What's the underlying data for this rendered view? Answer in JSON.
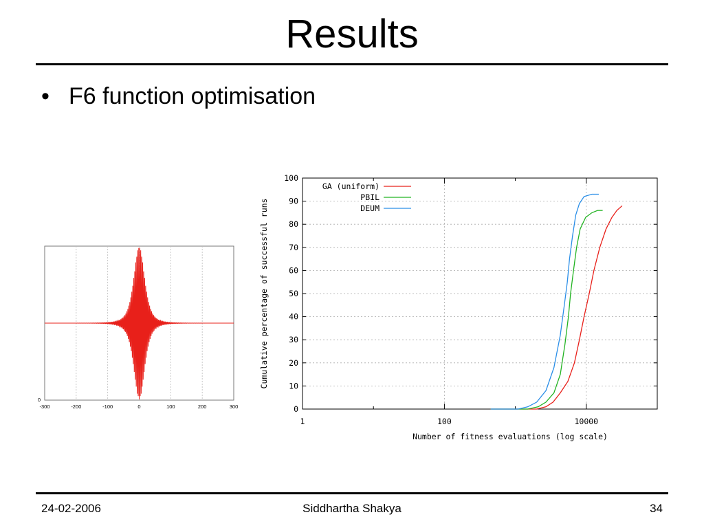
{
  "slide": {
    "title": "Results",
    "bullet": "F6 function optimisation"
  },
  "footer": {
    "date": "24-02-2006",
    "author": "Siddhartha Shakya",
    "page": "34"
  },
  "colors": {
    "ga": "#e8201a",
    "pbil": "#21b321",
    "deum": "#2b8fe8",
    "f6": "#e8201a"
  },
  "chart_data": [
    {
      "type": "line",
      "title": "",
      "xlabel": "",
      "ylabel": "",
      "xlim": [
        -300,
        300
      ],
      "x_ticks": [
        "-300",
        "-200",
        "-100",
        "0",
        "100",
        "200",
        "300"
      ],
      "y_ticks": [
        "0"
      ],
      "grid": true,
      "series": [
        {
          "function": "0.5 + (sin^2(x) - 0.5) / (1 + 0.001 x^2)^2",
          "x_range": [
            -300,
            300
          ],
          "envelope": "amplitude decays with distance from x = 0",
          "color": "#e8201a"
        }
      ]
    },
    {
      "type": "line",
      "title": "",
      "xlabel": "Number of fitness evaluations (log scale)",
      "ylabel": "Cumulative percentage of successful runs",
      "x_scale": "log",
      "xlim": [
        1,
        100000
      ],
      "ylim": [
        0,
        100
      ],
      "x_ticks": [
        "1",
        "100",
        "10000"
      ],
      "y_ticks": [
        "0",
        "10",
        "20",
        "30",
        "40",
        "50",
        "60",
        "70",
        "80",
        "90",
        "100"
      ],
      "grid": true,
      "legend": "top-right",
      "series": [
        {
          "name": "GA (uniform)",
          "color": "#e8201a",
          "points": [
            [
              450,
              0
            ],
            [
              2000,
              0
            ],
            [
              2700,
              1
            ],
            [
              3400,
              3
            ],
            [
              4300,
              7
            ],
            [
              5500,
              12
            ],
            [
              6800,
              20
            ],
            [
              8000,
              30
            ],
            [
              9300,
              40
            ],
            [
              11000,
              50
            ],
            [
              12800,
              60
            ],
            [
              15500,
              70
            ],
            [
              19000,
              78
            ],
            [
              23000,
              83
            ],
            [
              27000,
              86
            ],
            [
              32000,
              88
            ]
          ]
        },
        {
          "name": "PBIL",
          "color": "#21b321",
          "points": [
            [
              450,
              0
            ],
            [
              1500,
              0
            ],
            [
              2100,
              1
            ],
            [
              2700,
              3
            ],
            [
              3500,
              7
            ],
            [
              4300,
              15
            ],
            [
              5000,
              28
            ],
            [
              5600,
              40
            ],
            [
              6000,
              50
            ],
            [
              6600,
              60
            ],
            [
              7300,
              70
            ],
            [
              8200,
              78
            ],
            [
              9800,
              83
            ],
            [
              12000,
              85
            ],
            [
              14500,
              86
            ],
            [
              17000,
              86
            ]
          ]
        },
        {
          "name": "DEUM",
          "color": "#2b8fe8",
          "points": [
            [
              450,
              0
            ],
            [
              1100,
              0
            ],
            [
              1500,
              1
            ],
            [
              2000,
              3
            ],
            [
              2700,
              8
            ],
            [
              3500,
              18
            ],
            [
              4300,
              32
            ],
            [
              4900,
              45
            ],
            [
              5400,
              55
            ],
            [
              5800,
              65
            ],
            [
              6400,
              75
            ],
            [
              7100,
              84
            ],
            [
              8000,
              89
            ],
            [
              9300,
              92
            ],
            [
              12000,
              93
            ],
            [
              15000,
              93
            ]
          ]
        }
      ]
    }
  ]
}
